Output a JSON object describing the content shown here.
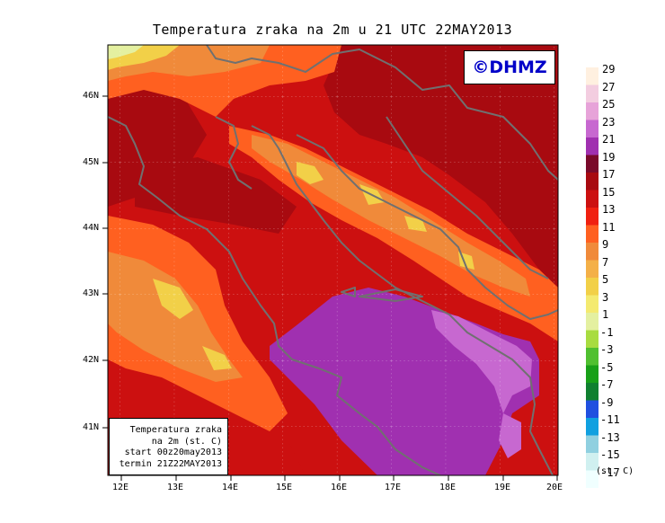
{
  "title": "Temperatura zraka na 2m u 21 UTC 22MAY2013",
  "logo": "©DHMZ",
  "info_box": {
    "line1": "Temperatura zraka",
    "line2": "na 2m (st. C)",
    "line3": "start 00z20may2013",
    "line4": "termin 21Z22MAY2013"
  },
  "lat_labels": [
    "46N",
    "45N",
    "44N",
    "43N",
    "42N",
    "41N"
  ],
  "lon_labels": [
    "12E",
    "13E",
    "14E",
    "15E",
    "16E",
    "17E",
    "18E",
    "19E",
    "20E"
  ],
  "colorbar": {
    "units": "(st. C)",
    "labels": [
      "29",
      "27",
      "25",
      "23",
      "21",
      "19",
      "17",
      "15",
      "13",
      "11",
      "9",
      "7",
      "5",
      "3",
      "1",
      "-1",
      "-3",
      "-5",
      "-7",
      "-9",
      "-11",
      "-13",
      "-15",
      "-17"
    ],
    "colors": [
      "#fff0e0",
      "#f3cde0",
      "#e7a3d9",
      "#c768d0",
      "#a030b0",
      "#7a0a2a",
      "#a80a10",
      "#cc1010",
      "#f02010",
      "#ff6020",
      "#f08a3a",
      "#f4b048",
      "#f2d048",
      "#f4ea70",
      "#e4f0a0",
      "#a8dc40",
      "#50c030",
      "#18a018",
      "#108030",
      "#2050e0",
      "#10a0e0",
      "#90d0e0",
      "#d0f0f0",
      "#f0ffff"
    ]
  },
  "map": {
    "region": "Adriatic Sea and surroundings",
    "fill_colors": {
      "warm_red": "#cc1010",
      "dark_red": "#a80a10",
      "orange": "#ff6020",
      "light_orange": "#f08a3a",
      "yellow": "#f2d048",
      "purple": "#a030b0",
      "light_purple": "#c768d0"
    },
    "coastline_color": "#707070"
  }
}
